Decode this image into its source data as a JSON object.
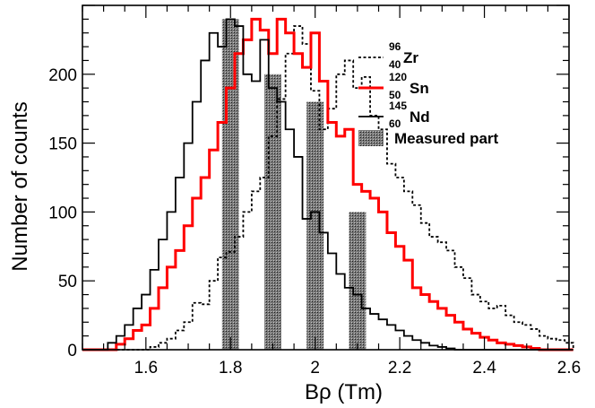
{
  "chart_data": {
    "type": "histogram",
    "xlabel": "Bρ (Tm)",
    "ylabel": "Number of counts",
    "xlim": [
      1.45,
      2.6
    ],
    "ylim": [
      0,
      250
    ],
    "x_ticks": [
      1.6,
      1.8,
      2,
      2.2,
      2.4,
      2.6
    ],
    "x_tick_labels": [
      "1.6",
      "1.8",
      "2",
      "2.2",
      "2.4",
      "2.6"
    ],
    "y_ticks": [
      0,
      50,
      100,
      150,
      200
    ],
    "y_tick_labels": [
      "0",
      "50",
      "100",
      "150",
      "200"
    ],
    "bin_start": 1.45,
    "bin_width": 0.02,
    "grid": false,
    "legend_position": "top-right",
    "series": [
      {
        "name_mass": "96",
        "name_charge": "40",
        "name_symbol": "Zr",
        "color": "#000000",
        "line_style": "dashed",
        "values": [
          0,
          0,
          0,
          0,
          0,
          0,
          0,
          0,
          2,
          5,
          8,
          14,
          20,
          34,
          33,
          50,
          67,
          71,
          82,
          100,
          115,
          125,
          155,
          182,
          215,
          235,
          222,
          188,
          160,
          175,
          200,
          210,
          190,
          198,
          170,
          160,
          135,
          125,
          115,
          105,
          92,
          82,
          78,
          72,
          60,
          52,
          40,
          35,
          30,
          32,
          25,
          20,
          18,
          15,
          10,
          8,
          7,
          5
        ]
      },
      {
        "name_mass": "120",
        "name_charge": "50",
        "name_symbol": "Sn",
        "color": "#ff0000",
        "line_style": "solid",
        "values": [
          0,
          0,
          0,
          0,
          4,
          8,
          14,
          18,
          30,
          45,
          60,
          72,
          90,
          110,
          125,
          145,
          165,
          190,
          215,
          225,
          240,
          232,
          215,
          240,
          230,
          215,
          205,
          230,
          195,
          165,
          155,
          160,
          120,
          115,
          110,
          100,
          85,
          75,
          65,
          45,
          40,
          35,
          30,
          25,
          20,
          15,
          12,
          9,
          7,
          5,
          4,
          3,
          2,
          1,
          0,
          0,
          0,
          0
        ]
      },
      {
        "name_mass": "145",
        "name_charge": "60",
        "name_symbol": "Nd",
        "color": "#000000",
        "line_style": "solid",
        "values": [
          0,
          0,
          0,
          5,
          10,
          18,
          30,
          40,
          58,
          80,
          100,
          125,
          150,
          180,
          210,
          230,
          220,
          240,
          235,
          200,
          195,
          225,
          190,
          180,
          160,
          140,
          95,
          100,
          85,
          70,
          55,
          45,
          40,
          30,
          26,
          22,
          18,
          14,
          10,
          7,
          5,
          3,
          2,
          1,
          0,
          0,
          0,
          0,
          0,
          0,
          0,
          0,
          0,
          0,
          0,
          0,
          0,
          0
        ]
      }
    ],
    "measured_part": {
      "label": "Measured part",
      "regions": [
        {
          "x0": 1.78,
          "x1": 1.82,
          "height": 240
        },
        {
          "x0": 1.88,
          "x1": 1.92,
          "height": 200
        },
        {
          "x0": 1.98,
          "x1": 2.02,
          "height": 180
        },
        {
          "x0": 2.08,
          "x1": 2.12,
          "height": 100
        }
      ]
    }
  }
}
